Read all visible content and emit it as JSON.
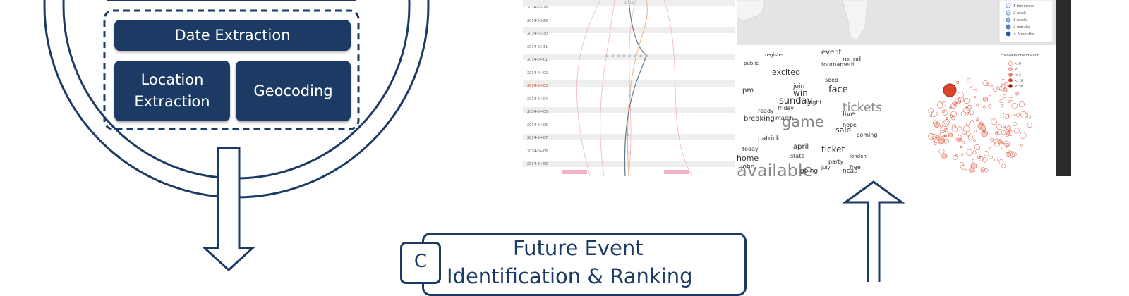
{
  "pipeline": {
    "date_extraction": "Date Extraction",
    "location_extraction": [
      "Location",
      "Extraction"
    ],
    "geocoding": "Geocoding"
  },
  "visualization": {
    "timeline_dates": [
      "2014-03-28",
      "2014-03-29",
      "2014-03-30",
      "2014-03-31",
      "2014-04-01",
      "2014-04-02",
      "2014-04-03",
      "2014-04-04",
      "2014-04-05",
      "2014-04-06",
      "2014-04-07",
      "2014-04-08",
      "2014-04-09"
    ],
    "map_legend": [
      "1 tomorrow",
      "2 week",
      "3 weeks",
      "2 months",
      "> 3 months"
    ],
    "bubble_title": "Followers Friend Ratio",
    "bubble_legend": [
      "< 0",
      "< 1",
      "< 3",
      "< 10",
      "< 50"
    ],
    "wordcloud_words": [
      "event",
      "round",
      "register",
      "tournament",
      "excited",
      "pm",
      "face",
      "tickets",
      "win",
      "join",
      "seed",
      "sunday",
      "friday",
      "live",
      "breaking",
      "march",
      "game",
      "coming",
      "sale",
      "april",
      "ticket",
      "state",
      "home",
      "available",
      "party",
      "free",
      "july",
      "ncaa",
      "london",
      "going",
      "today",
      "john",
      "patrick",
      "ready",
      "public",
      "hope",
      "night"
    ],
    "colors": {
      "navy": "#1b3a64",
      "pink": "#f3b2c9",
      "blue": "#5d7a8e",
      "orange": "#e8b47a",
      "red": "#d9432b"
    }
  },
  "phase_c": {
    "letter": "C",
    "line1": "Future Event",
    "line2": "Identification & Ranking"
  }
}
